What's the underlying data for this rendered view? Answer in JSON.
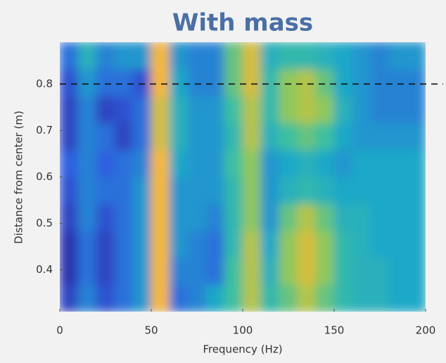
{
  "chart_data": {
    "type": "heatmap",
    "title": "With mass",
    "x_label": "Frequency (Hz)",
    "y_label": "Distance from center (m)",
    "xbins": [
      0,
      10,
      20,
      30,
      40,
      50,
      60,
      70,
      80,
      90,
      100,
      110,
      120,
      130,
      140,
      150,
      160,
      170,
      180,
      190,
      200
    ],
    "ybins": [
      0.31,
      0.368,
      0.426,
      0.484,
      0.542,
      0.6,
      0.658,
      0.716,
      0.774,
      0.832,
      0.89
    ],
    "z": [
      [
        0.15,
        0.35,
        0.2,
        0.3,
        0.4,
        0.85,
        0.3,
        0.35,
        0.45,
        0.6,
        0.75,
        0.55,
        0.65,
        0.75,
        0.65,
        0.55,
        0.5,
        0.5,
        0.45,
        0.45
      ],
      [
        0.1,
        0.3,
        0.15,
        0.3,
        0.4,
        0.85,
        0.35,
        0.35,
        0.3,
        0.6,
        0.75,
        0.5,
        0.7,
        0.8,
        0.7,
        0.55,
        0.5,
        0.5,
        0.45,
        0.45
      ],
      [
        0.1,
        0.3,
        0.15,
        0.3,
        0.4,
        0.85,
        0.4,
        0.35,
        0.3,
        0.55,
        0.75,
        0.45,
        0.7,
        0.8,
        0.7,
        0.55,
        0.5,
        0.45,
        0.45,
        0.45
      ],
      [
        0.15,
        0.35,
        0.2,
        0.3,
        0.4,
        0.85,
        0.4,
        0.4,
        0.35,
        0.55,
        0.7,
        0.4,
        0.65,
        0.75,
        0.65,
        0.5,
        0.5,
        0.45,
        0.45,
        0.45
      ],
      [
        0.2,
        0.35,
        0.3,
        0.3,
        0.4,
        0.85,
        0.4,
        0.4,
        0.4,
        0.55,
        0.7,
        0.4,
        0.5,
        0.55,
        0.5,
        0.45,
        0.45,
        0.45,
        0.45,
        0.45
      ],
      [
        0.25,
        0.35,
        0.25,
        0.3,
        0.35,
        0.85,
        0.45,
        0.4,
        0.4,
        0.6,
        0.7,
        0.4,
        0.45,
        0.5,
        0.45,
        0.4,
        0.45,
        0.45,
        0.45,
        0.45
      ],
      [
        0.15,
        0.35,
        0.3,
        0.15,
        0.3,
        0.8,
        0.5,
        0.4,
        0.4,
        0.55,
        0.75,
        0.5,
        0.6,
        0.65,
        0.6,
        0.45,
        0.4,
        0.4,
        0.4,
        0.4
      ],
      [
        0.15,
        0.35,
        0.15,
        0.2,
        0.3,
        0.8,
        0.5,
        0.4,
        0.4,
        0.6,
        0.75,
        0.55,
        0.7,
        0.75,
        0.7,
        0.5,
        0.4,
        0.35,
        0.35,
        0.35
      ],
      [
        0.2,
        0.4,
        0.3,
        0.3,
        0.2,
        0.85,
        0.45,
        0.35,
        0.35,
        0.65,
        0.8,
        0.55,
        0.7,
        0.75,
        0.65,
        0.45,
        0.4,
        0.35,
        0.35,
        0.35
      ],
      [
        0.3,
        0.5,
        0.35,
        0.4,
        0.4,
        0.85,
        0.4,
        0.35,
        0.35,
        0.65,
        0.8,
        0.5,
        0.55,
        0.55,
        0.5,
        0.45,
        0.4,
        0.35,
        0.4,
        0.4
      ]
    ],
    "xlim": [
      0,
      200
    ],
    "ylim": [
      0.31,
      0.89
    ],
    "xticks": [
      0,
      50,
      100,
      150,
      200
    ],
    "yticks": [
      0.4,
      0.5,
      0.6,
      0.7,
      0.8
    ],
    "hline": 0.8
  }
}
